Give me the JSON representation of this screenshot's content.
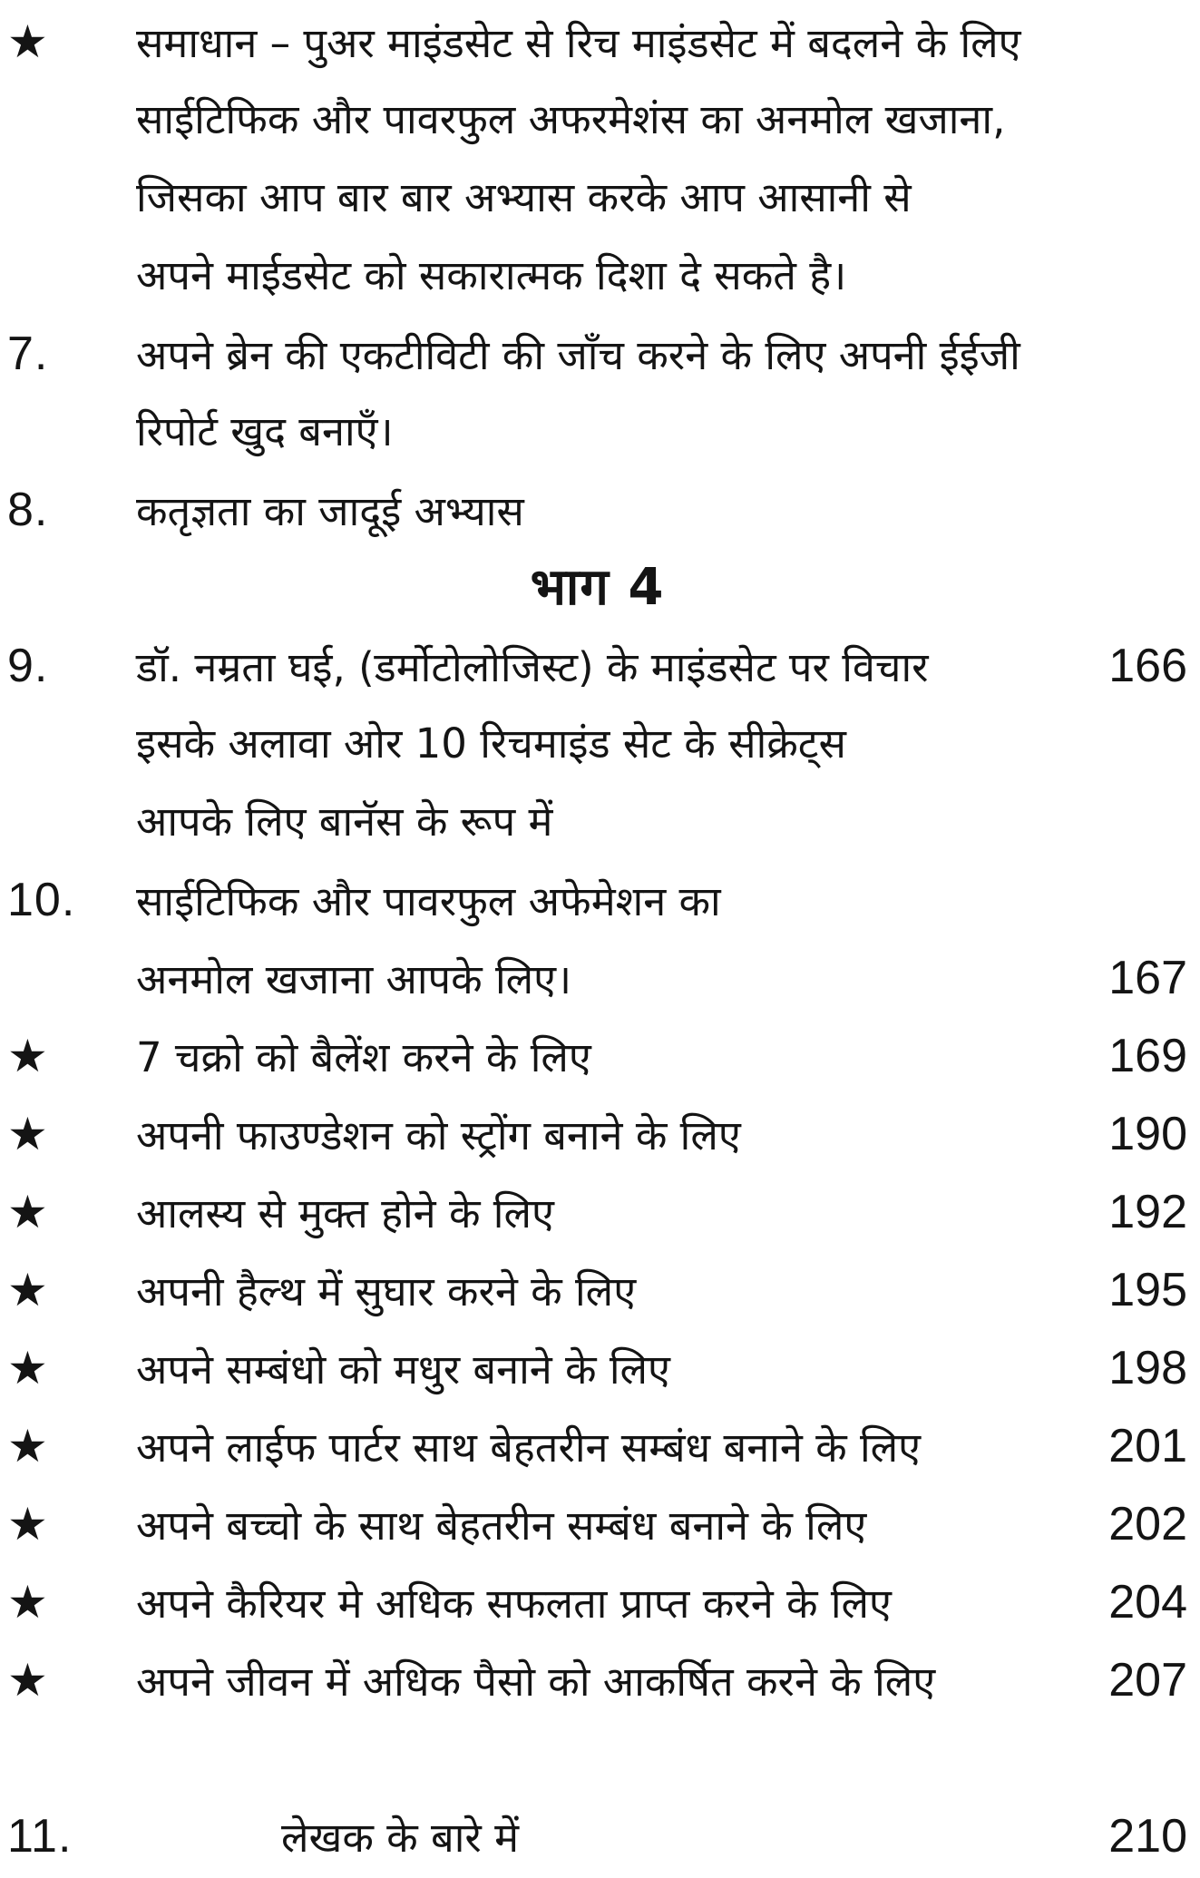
{
  "page": {
    "background": "#ffffff",
    "ink": "#141414",
    "language": "hi"
  },
  "rows": [
    {
      "marker": "★",
      "text": "समाधान – पुअर माइंडसेट से रिच माइंडसेट में बदलने के लिए",
      "page": ""
    },
    {
      "marker": "",
      "text": "साईटिफिक और पावरफुल अफरमेशंस का अनमोल खजाना,",
      "page": ""
    },
    {
      "marker": "",
      "text": "जिसका आप बार बार अभ्यास करके आप आसानी से",
      "page": ""
    },
    {
      "marker": "",
      "text": "अपने माईडसेट को सकारात्मक दिशा दे सकते है।",
      "page": ""
    },
    {
      "marker": "7.",
      "text": "अपने ब्रेन की एकटीविटी की जाँच करने के लिए अपनी ईईजी",
      "page": ""
    },
    {
      "marker": "",
      "text": "रिपोर्ट खुद बनाएँ।",
      "page": ""
    },
    {
      "marker": "8.",
      "text": "कतृज्ञता का जादूई अभ्यास",
      "page": ""
    },
    {
      "type": "heading",
      "text": "भाग 4"
    },
    {
      "marker": "9.",
      "text": "डॉ. नम्रता घई, (डर्मोटोलोजिस्ट) के माइंडसेट पर विचार",
      "page": "166"
    },
    {
      "marker": "",
      "text": "इसके अलावा ओर 10 रिचमाइंड सेट के सीक्रेट्स",
      "page": ""
    },
    {
      "marker": "",
      "text": "आपके लिए बानॅस के रूप में",
      "page": ""
    },
    {
      "marker": "10.",
      "text": "साईटिफिक और पावरफुल अफेमेशन का",
      "page": ""
    },
    {
      "marker": "",
      "text": "अनमोल खजाना आपके लिए।",
      "page": "167"
    },
    {
      "marker": "★",
      "text": "7 चक्रो को बैलेंश करने के लिए",
      "page": "169"
    },
    {
      "marker": "★",
      "text": "अपनी फाउण्डेशन को स्ट्रोंग बनाने के लिए",
      "page": "190"
    },
    {
      "marker": "★",
      "text": "आलस्य से मुक्त होने के लिए",
      "page": "192"
    },
    {
      "marker": "★",
      "text": "अपनी हैल्थ में सुघार करने के लिए",
      "page": "195"
    },
    {
      "marker": "★",
      "text": "अपने सम्बंधो को मधुर बनाने के लिए",
      "page": "198"
    },
    {
      "marker": "★",
      "text": "अपने लाईफ पार्टर साथ बेहतरीन सम्बंध बनाने के लिए",
      "page": "201"
    },
    {
      "marker": "★",
      "text": "अपने बच्चो के साथ बेहतरीन सम्बंध बनाने के लिए",
      "page": "202"
    },
    {
      "marker": "★",
      "text": "अपने कैरियर मे अधिक सफलता प्राप्त करने के लिए",
      "page": "204"
    },
    {
      "marker": "★",
      "text": "अपने जीवन में अधिक पैसो को आकर्षित करने के लिए",
      "page": "207"
    },
    {
      "marker": "11.",
      "text": "लेखक के बारे में",
      "page": "210",
      "indent": true,
      "gap_before": true
    }
  ]
}
